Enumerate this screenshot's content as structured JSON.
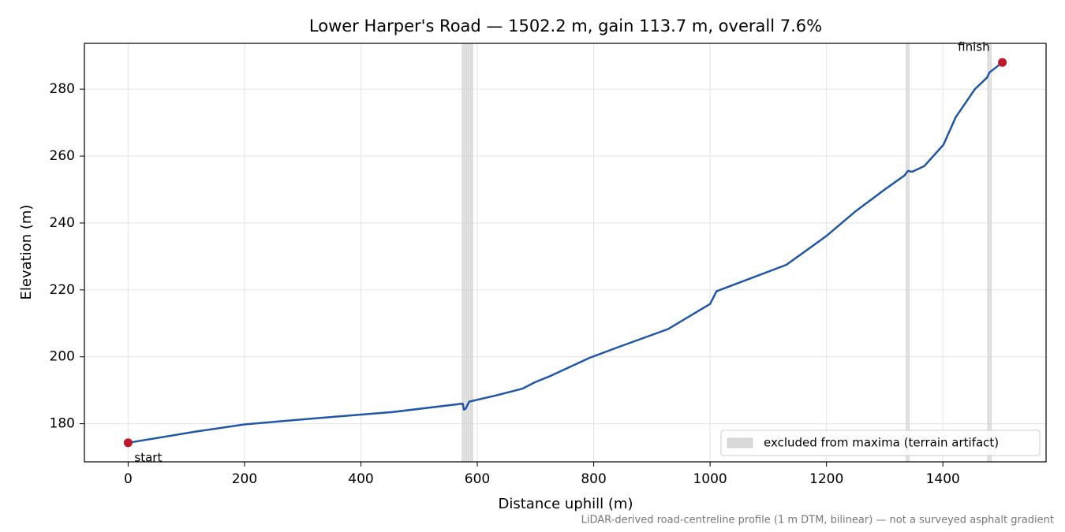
{
  "chart_data": {
    "type": "line",
    "title": "Lower Harper's Road — 1502.2 m, gain 113.7 m, overall 7.6%",
    "x_label": "Distance uphill (m)",
    "y_label": "Elevation (m)",
    "footnote": "LiDAR-derived road-centreline profile (1 m DTM, bilinear) — not a surveyed asphalt gradient",
    "xlim": [
      -75.1,
      1577.3
    ],
    "ylim": [
      168.6,
      293.7
    ],
    "xticks": [
      0,
      200,
      400,
      600,
      800,
      1000,
      1200,
      1400
    ],
    "yticks": [
      180,
      200,
      220,
      240,
      260,
      280
    ],
    "grid": true,
    "legend_position": "lower right",
    "bands": {
      "name": "excluded from maxima (terrain artifact)",
      "color": "#d9d9d9",
      "ranges": [
        [
          574,
          579
        ],
        [
          581,
          586
        ],
        [
          588,
          592
        ],
        [
          1337,
          1342
        ],
        [
          1477,
          1483
        ]
      ]
    },
    "series": [
      {
        "name": "Elevation",
        "color": "#1f56a8",
        "x": [
          0,
          118,
          200,
          320,
          455,
          575,
          577,
          580,
          586,
          631,
          678,
          699,
          726,
          793,
          847,
          928,
          1000,
          1011,
          1131,
          1199,
          1250,
          1300,
          1334,
          1340,
          1347,
          1368,
          1401,
          1422,
          1455,
          1476,
          1480,
          1502.2
        ],
        "values": [
          174.3,
          177.7,
          179.8,
          181.6,
          183.5,
          186.0,
          184.2,
          184.5,
          186.6,
          188.4,
          190.5,
          192.4,
          194.3,
          199.7,
          203.2,
          208.3,
          215.8,
          219.6,
          227.5,
          236.0,
          243.5,
          250.0,
          254.2,
          255.6,
          255.3,
          257.0,
          263.4,
          271.6,
          280.0,
          283.5,
          285.0,
          288.0
        ]
      }
    ],
    "markers": [
      {
        "label": "start",
        "x": 0,
        "y": 174.3,
        "color": "#c0182a"
      },
      {
        "label": "finish",
        "x": 1502.2,
        "y": 288.0,
        "color": "#c0182a"
      }
    ]
  }
}
